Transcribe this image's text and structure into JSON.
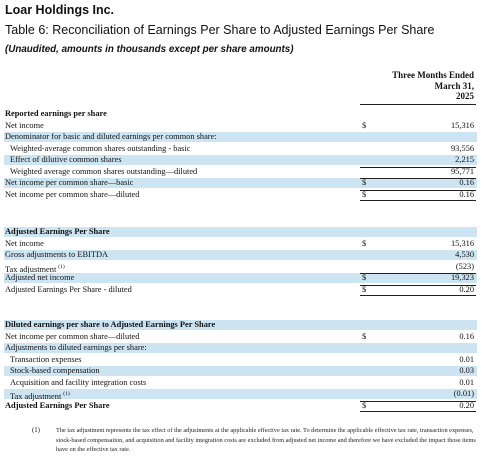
{
  "header": {
    "company": "Loar Holdings Inc.",
    "table_title": "Table 6: Reconciliation of Earnings Per Share to Adjusted Earnings Per Share",
    "subtitle": "(Unaudited, amounts in thousands except per share amounts)"
  },
  "column_header": {
    "line1": "Three Months Ended",
    "line2": "March 31,",
    "line3": "2025"
  },
  "sections": [
    {
      "rows": [
        {
          "label": "Reported earnings per share",
          "bold": true,
          "indent": 0,
          "currency": "",
          "value": "",
          "shade": false,
          "top": false,
          "bottom": false
        },
        {
          "label": "Net income",
          "bold": false,
          "indent": 0,
          "currency": "$",
          "value": "15,316",
          "shade": false,
          "top": false,
          "bottom": false
        },
        {
          "label": "Denominator for basic and diluted earnings per common share:",
          "bold": false,
          "indent": 0,
          "currency": "",
          "value": "",
          "shade": true,
          "top": false,
          "bottom": false
        },
        {
          "label": "Weighted-average common shares outstanding - basic",
          "bold": false,
          "indent": 1,
          "currency": "",
          "value": "93,556",
          "shade": false,
          "top": false,
          "bottom": false
        },
        {
          "label": "Effect of dilutive common shares",
          "bold": false,
          "indent": 1,
          "currency": "",
          "value": "2,215",
          "shade": true,
          "top": false,
          "bottom": false
        },
        {
          "label": "Weighted average common shares outstanding—diluted",
          "bold": false,
          "indent": 1,
          "currency": "",
          "value": "95,771",
          "shade": false,
          "top": true,
          "bottom": false
        },
        {
          "label": "Net income per common share—basic",
          "bold": false,
          "indent": 0,
          "currency": "$",
          "value": "0.16",
          "shade": true,
          "top": true,
          "bottom": false
        },
        {
          "label": "Net income per common share—diluted",
          "bold": false,
          "indent": 0,
          "currency": "$",
          "value": "0.16",
          "shade": false,
          "top": true,
          "bottom": true
        }
      ]
    },
    {
      "rows": [
        {
          "label": "Adjusted Earnings Per Share",
          "bold": true,
          "indent": 0,
          "currency": "",
          "value": "",
          "shade": true,
          "top": false,
          "bottom": false
        },
        {
          "label": "Net income",
          "bold": false,
          "indent": 0,
          "currency": "$",
          "value": "15,316",
          "shade": false,
          "top": false,
          "bottom": false
        },
        {
          "label": "Gross adjustments to EBITDA",
          "bold": false,
          "indent": 0,
          "currency": "",
          "value": "4,530",
          "shade": true,
          "top": false,
          "bottom": false
        },
        {
          "label": "Tax adjustment",
          "sup": "(1)",
          "bold": false,
          "indent": 0,
          "currency": "",
          "value": "(523)",
          "shade": false,
          "top": false,
          "bottom": false
        },
        {
          "label": "Adjusted net income",
          "bold": false,
          "indent": 0,
          "currency": "$",
          "value": "19,323",
          "shade": true,
          "top": true,
          "bottom": false
        },
        {
          "label": "Adjusted Earnings Per Share - diluted",
          "bold": false,
          "indent": 0,
          "currency": "$",
          "value": "0.20",
          "shade": false,
          "top": true,
          "bottom": true
        }
      ]
    },
    {
      "rows": [
        {
          "label": "Diluted earnings per share to Adjusted Earnings Per Share",
          "bold": true,
          "indent": 0,
          "currency": "",
          "value": "",
          "shade": true,
          "top": false,
          "bottom": false
        },
        {
          "label": "Net income per common share—diluted",
          "bold": false,
          "indent": 0,
          "currency": "$",
          "value": "0.16",
          "shade": false,
          "top": false,
          "bottom": false
        },
        {
          "label": "Adjustments to diluted earnings per share:",
          "bold": false,
          "indent": 0,
          "currency": "",
          "value": "",
          "shade": true,
          "top": false,
          "bottom": false
        },
        {
          "label": "Transaction expenses",
          "bold": false,
          "indent": 1,
          "currency": "",
          "value": "0.01",
          "shade": false,
          "top": false,
          "bottom": false
        },
        {
          "label": "Stock-based compensation",
          "bold": false,
          "indent": 1,
          "currency": "",
          "value": "0.03",
          "shade": true,
          "top": false,
          "bottom": false
        },
        {
          "label": "Acquisition and facility integration costs",
          "bold": false,
          "indent": 1,
          "currency": "",
          "value": "0.01",
          "shade": false,
          "top": false,
          "bottom": false
        },
        {
          "label": "Tax adjustment",
          "sup": "(1)",
          "bold": false,
          "indent": 1,
          "currency": "",
          "value": "(0.01)",
          "shade": true,
          "top": false,
          "bottom": false
        },
        {
          "label": "Adjusted Earnings Per Share",
          "bold": true,
          "indent": 0,
          "currency": "$",
          "value": "0.20",
          "shade": false,
          "top": true,
          "bottom": true
        }
      ]
    }
  ],
  "footnote": {
    "marker": "(1)",
    "text": "The tax adjustment represents the tax effect of the adjustments at the applicable effective tax rate. To determine the applicable effective tax rate, transaction expenses, stock-based compensation, and acquisition and facility integration costs are excluded from adjusted net income and therefore we have excluded the impact those items have on the effective tax rate."
  }
}
